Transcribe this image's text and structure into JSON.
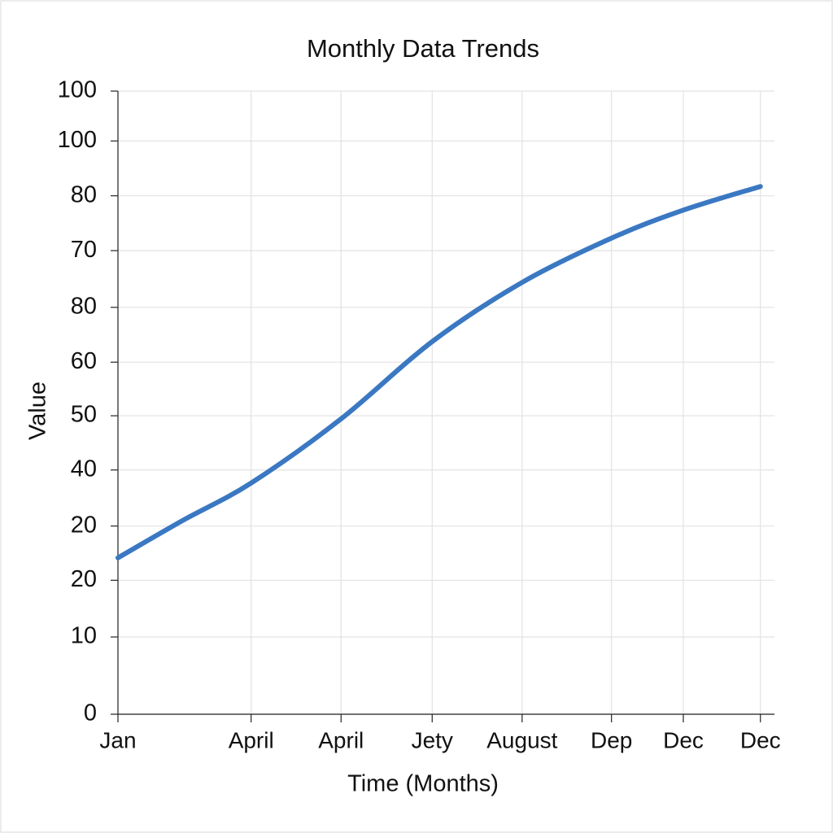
{
  "chart_data": {
    "type": "line",
    "title": "Monthly Data Trends",
    "x_label": "Time (Months)",
    "y_label": "Value",
    "x": [
      0,
      1.11,
      2.28,
      3.82,
      5.38,
      6.92,
      8.45,
      9.68,
      11
    ],
    "series": [
      {
        "name": "Value",
        "color": "#3a78c2",
        "values": [
          25.1,
          31.1,
          37.1,
          47.4,
          59.8,
          69.3,
          76.4,
          80.9,
          84.7
        ]
      }
    ],
    "xlim": [
      0,
      11.24
    ],
    "xticks": [
      {
        "value": 0,
        "label": "Jan"
      },
      {
        "value": 2.28,
        "label": "April"
      },
      {
        "value": 3.82,
        "label": "April"
      },
      {
        "value": 5.38,
        "label": "Jety"
      },
      {
        "value": 6.92,
        "label": "August"
      },
      {
        "value": 8.45,
        "label": "Dep"
      },
      {
        "value": 9.68,
        "label": "Dec"
      },
      {
        "value": 11,
        "label": "Dec"
      }
    ],
    "ylim": [
      0,
      100
    ],
    "yticks": [
      0,
      {
        "value": 12.4,
        "label": "10"
      },
      {
        "value": 21.5,
        "label": "20"
      },
      {
        "value": 30.2,
        "label": "20"
      },
      {
        "value": 39.2,
        "label": "40"
      },
      {
        "value": 47.9,
        "label": "50"
      },
      {
        "value": 56.5,
        "label": "60"
      },
      {
        "value": 65.3,
        "label": "80"
      },
      {
        "value": 74.4,
        "label": "70"
      },
      {
        "value": 83.2,
        "label": "80"
      },
      {
        "value": 92.0,
        "label": "100"
      },
      100
    ],
    "grid": true
  }
}
